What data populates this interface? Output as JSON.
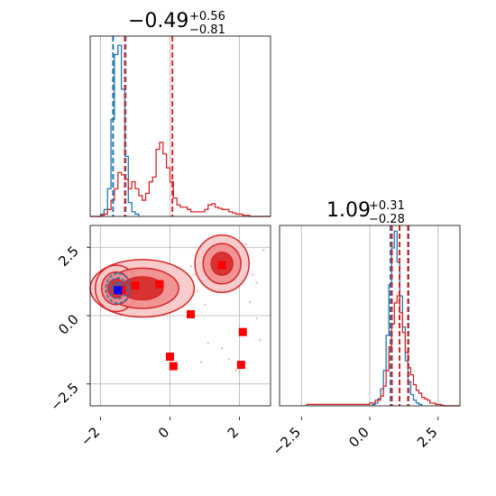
{
  "chart_data": [
    {
      "type": "histogram",
      "panel": "top-left marginal",
      "title": {
        "value": "−0.49",
        "upper": "+0.56",
        "lower": "−0.81"
      },
      "xlim": [
        -2.3,
        2.9
      ],
      "grid": true,
      "series": [
        {
          "color": "#1f77b4",
          "bin_edges": [
            -2.0,
            -1.9,
            -1.8,
            -1.7,
            -1.6,
            -1.5,
            -1.4,
            -1.3,
            -1.2,
            -1.1,
            -1.0,
            -0.9
          ],
          "density": [
            0.01,
            0.03,
            0.12,
            0.42,
            0.7,
            0.74,
            0.55,
            0.26,
            0.06,
            0.02,
            0.01
          ]
        },
        {
          "color": "#d62728",
          "bin_edges": [
            -2.3,
            -2.0,
            -1.9,
            -1.8,
            -1.7,
            -1.6,
            -1.5,
            -1.4,
            -1.3,
            -1.2,
            -1.1,
            -1.0,
            -0.9,
            -0.8,
            -0.7,
            -0.6,
            -0.5,
            -0.4,
            -0.3,
            -0.2,
            -0.1,
            0.0,
            0.1,
            0.2,
            0.3,
            0.4,
            0.5,
            0.6,
            0.7,
            0.8,
            0.9,
            1.0,
            1.1,
            1.2,
            1.3,
            1.4,
            1.5,
            1.6,
            1.7,
            1.8,
            1.9,
            2.0,
            2.1,
            2.2,
            2.3,
            2.9
          ],
          "density": [
            0.0,
            0.005,
            0.01,
            0.03,
            0.07,
            0.12,
            0.19,
            0.18,
            0.16,
            0.12,
            0.15,
            0.12,
            0.09,
            0.07,
            0.1,
            0.15,
            0.17,
            0.29,
            0.32,
            0.27,
            0.21,
            0.15,
            0.08,
            0.05,
            0.04,
            0.04,
            0.03,
            0.02,
            0.02,
            0.02,
            0.02,
            0.03,
            0.05,
            0.055,
            0.04,
            0.035,
            0.03,
            0.03,
            0.02,
            0.015,
            0.01,
            0.01,
            0.005,
            0.005,
            0.0
          ]
        }
      ],
      "vlines": [
        {
          "x": -1.64,
          "color": "#1f77b4"
        },
        {
          "x": -1.28,
          "color": "#1f77b4"
        },
        {
          "x": -1.3,
          "color": "#d62728"
        },
        {
          "x": 0.07,
          "color": "#d62728"
        }
      ]
    },
    {
      "type": "scatter",
      "panel": "bottom-left 2D",
      "xlim": [
        -2.3,
        2.9
      ],
      "ylim": [
        -3.3,
        3.3
      ],
      "xticks": [
        "−2",
        "0",
        "2"
      ],
      "yticks": [
        "−2.5",
        "0.0",
        "2.5"
      ],
      "grid": true,
      "contours": {
        "red_lobes": [
          {
            "cx": -0.8,
            "cy": 1.0,
            "rx": 1.5,
            "ry": 1.05
          },
          {
            "cx": -1.55,
            "cy": 1.0,
            "rx": 0.6,
            "ry": 0.85
          },
          {
            "cx": 1.5,
            "cy": 1.9,
            "rx": 0.78,
            "ry": 1.05
          }
        ],
        "blue_lobe": {
          "cx": -1.5,
          "cy": 1.0,
          "rx": 0.35,
          "ry": 0.55
        }
      },
      "markers_red": [
        [
          -1.4,
          0.93
        ],
        [
          -1.0,
          1.1
        ],
        [
          -0.3,
          1.15
        ],
        [
          0.6,
          0.05
        ],
        [
          1.5,
          1.85
        ],
        [
          0.0,
          -1.5
        ],
        [
          0.1,
          -1.85
        ],
        [
          2.1,
          -0.6
        ],
        [
          2.05,
          -1.8
        ]
      ],
      "markers_blue": [
        [
          -1.5,
          0.93
        ]
      ],
      "scatter_red": [
        [
          0.6,
          1.8
        ],
        [
          2.5,
          1.2
        ],
        [
          2.7,
          2.4
        ],
        [
          1.1,
          -1.0
        ],
        [
          1.9,
          -2.0
        ],
        [
          2.3,
          0.5
        ],
        [
          1.7,
          -1.6
        ],
        [
          2.0,
          -2.1
        ],
        [
          0.7,
          1.5
        ],
        [
          2.2,
          2.6
        ],
        [
          1.3,
          2.7
        ],
        [
          2.5,
          -0.1
        ],
        [
          0.9,
          -1.7
        ],
        [
          2.6,
          -0.9
        ],
        [
          1.0,
          0.4
        ],
        [
          2.4,
          1.5
        ],
        [
          0.8,
          0.9
        ],
        [
          1.5,
          -1.2
        ]
      ]
    },
    {
      "type": "histogram",
      "panel": "bottom-right marginal",
      "title": {
        "value": "1.09",
        "upper": "+0.31",
        "lower": "−0.28"
      },
      "xlim": [
        -3.3,
        3.3
      ],
      "xticks": [
        "−2.5",
        "0.0",
        "2.5"
      ],
      "grid": true,
      "series": [
        {
          "color": "#1f77b4",
          "bin_edges": [
            0.1,
            0.2,
            0.3,
            0.4,
            0.5,
            0.6,
            0.7,
            0.8,
            0.9,
            1.0,
            1.1,
            1.2,
            1.3,
            1.4,
            1.5,
            1.6,
            1.7,
            1.8,
            1.9
          ],
          "density": [
            0.01,
            0.02,
            0.05,
            0.12,
            0.25,
            0.5,
            0.86,
            1.12,
            1.24,
            1.02,
            0.78,
            0.56,
            0.32,
            0.17,
            0.08,
            0.04,
            0.02,
            0.01
          ]
        },
        {
          "color": "#d62728",
          "bin_edges": [
            -2.3,
            0.0,
            0.2,
            0.4,
            0.5,
            0.6,
            0.7,
            0.8,
            0.9,
            1.0,
            1.1,
            1.2,
            1.3,
            1.4,
            1.5,
            1.6,
            1.7,
            1.8,
            1.9,
            2.0,
            2.1,
            2.2,
            2.3,
            2.4,
            2.5,
            2.6,
            2.7,
            3.3
          ],
          "density": [
            0.01,
            0.02,
            0.04,
            0.07,
            0.14,
            0.25,
            0.42,
            0.58,
            0.73,
            0.78,
            0.66,
            0.52,
            0.38,
            0.27,
            0.22,
            0.15,
            0.11,
            0.09,
            0.06,
            0.05,
            0.04,
            0.02,
            0.02,
            0.01,
            0.01,
            0.005,
            0.0
          ]
        }
      ],
      "vlines": [
        {
          "x": 0.76,
          "color": "#1f77b4"
        },
        {
          "x": 1.09,
          "color": "#1f77b4"
        },
        {
          "x": 1.42,
          "color": "#1f77b4"
        },
        {
          "x": 0.81,
          "color": "#d62728"
        },
        {
          "x": 1.09,
          "color": "#d62728"
        },
        {
          "x": 1.4,
          "color": "#d62728"
        }
      ]
    }
  ]
}
